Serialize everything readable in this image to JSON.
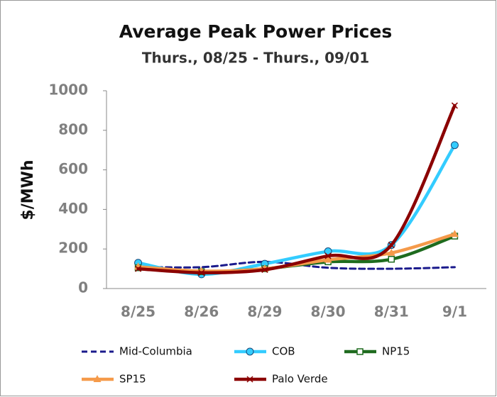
{
  "chart_data": {
    "type": "line",
    "title": "Average Peak Power Prices",
    "subtitle": "Thurs., 08/25 - Thurs., 09/01",
    "y_label": "$/MWh",
    "categories": [
      "8/25",
      "8/26",
      "8/29",
      "8/30",
      "8/31",
      "9/1"
    ],
    "series": [
      {
        "name": "Mid-Columbia",
        "color": "#1a1a8c",
        "dash": true,
        "marker": "none",
        "values": [
          110,
          108,
          135,
          105,
          100,
          108
        ]
      },
      {
        "name": "COB",
        "color": "#33ccff",
        "dash": false,
        "marker": "circle",
        "values": [
          130,
          72,
          125,
          188,
          220,
          725
        ]
      },
      {
        "name": "NP15",
        "color": "#1e6b1e",
        "dash": false,
        "marker": "square",
        "values": [
          105,
          85,
          100,
          135,
          148,
          265
        ]
      },
      {
        "name": "SP15",
        "color": "#f59a4a",
        "dash": false,
        "marker": "triangle",
        "values": [
          110,
          88,
          100,
          145,
          180,
          275
        ]
      },
      {
        "name": "Palo Verde",
        "color": "#8b0000",
        "dash": false,
        "marker": "x",
        "values": [
          100,
          80,
          95,
          165,
          220,
          925
        ]
      }
    ],
    "ylim": [
      0,
      1000
    ],
    "yticks": [
      0,
      200,
      400,
      600,
      800,
      1000
    ],
    "smooth": true,
    "grid": false,
    "legend": "bottom"
  }
}
